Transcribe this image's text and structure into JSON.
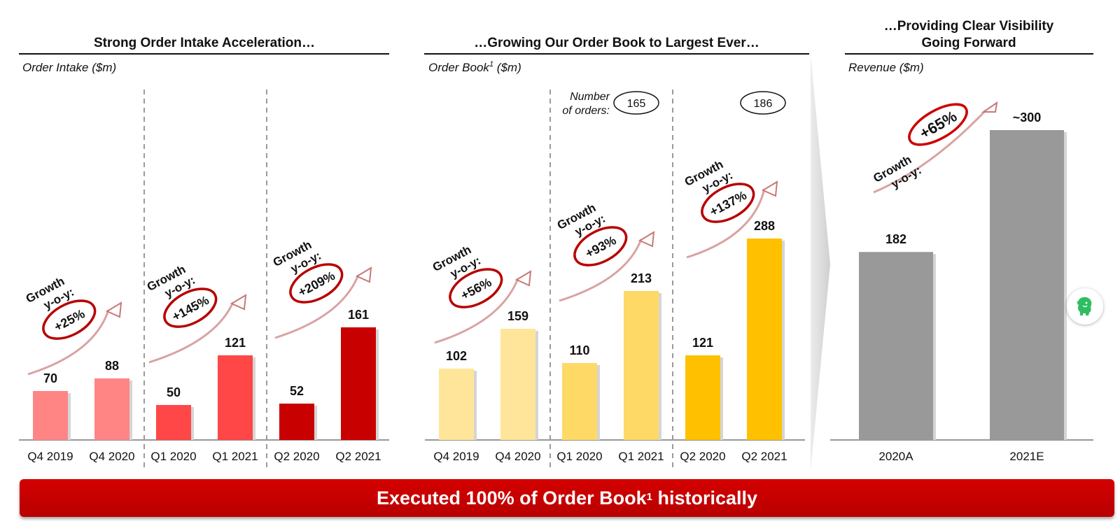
{
  "chart_data": [
    {
      "type": "bar",
      "title": "Strong Order Intake Acceleration…",
      "ylabel": "Order Intake ($m)",
      "categories": [
        "Q4 2019",
        "Q4 2020",
        "Q1 2020",
        "Q1 2021",
        "Q2 2020",
        "Q2 2021"
      ],
      "values": [
        70,
        88,
        50,
        121,
        52,
        161
      ],
      "value_labels": [
        "70",
        "88",
        "50",
        "121",
        "52",
        "161"
      ],
      "colors": [
        "#ff8585",
        "#ff8585",
        "#ff4747",
        "#ff4747",
        "#c80000",
        "#c80000"
      ],
      "growth": [
        {
          "label_1": "Growth",
          "label_2": "y-o-y:",
          "value": "+25%"
        },
        {
          "label_1": "Growth",
          "label_2": "y-o-y:",
          "value": "+145%"
        },
        {
          "label_1": "Growth",
          "label_2": "y-o-y:",
          "value": "+209%"
        }
      ]
    },
    {
      "type": "bar",
      "title": "…Growing Our Order Book to Largest Ever…",
      "ylabel": "Order Book",
      "ylabel_sup": "1",
      "ylabel_unit": "($m)",
      "categories": [
        "Q4 2019",
        "Q4 2020",
        "Q1 2020",
        "Q1 2021",
        "Q2 2020",
        "Q2 2021"
      ],
      "values": [
        102,
        159,
        110,
        213,
        121,
        288
      ],
      "value_labels": [
        "102",
        "159",
        "110",
        "213",
        "121",
        "288"
      ],
      "colors": [
        "#ffe599",
        "#ffe599",
        "#ffd966",
        "#ffd966",
        "#ffc000",
        "#ffc000"
      ],
      "growth": [
        {
          "label_1": "Growth",
          "label_2": "y-o-y:",
          "value": "+56%"
        },
        {
          "label_1": "Growth",
          "label_2": "y-o-y:",
          "value": "+93%"
        },
        {
          "label_1": "Growth",
          "label_2": "y-o-y:",
          "value": "+137%"
        }
      ],
      "orders_caption_1": "Number",
      "orders_caption_2": "of orders:",
      "orders": [
        "165",
        "186"
      ]
    },
    {
      "type": "bar",
      "title_line1": "…Providing Clear Visibility",
      "title_line2": "Going Forward",
      "ylabel": "Revenue ($m)",
      "categories": [
        "2020A",
        "2021E"
      ],
      "values": [
        182,
        300
      ],
      "value_labels": [
        "182",
        "~300"
      ],
      "colors": [
        "#999999",
        "#999999"
      ],
      "growth": {
        "label_1": "Growth",
        "label_2": "y-o-y:",
        "value": "+65%"
      }
    }
  ],
  "banner": {
    "text_main": "Executed 100% of Order Book",
    "text_sup": "1",
    "text_end": " historically"
  },
  "floating_button": {
    "icon": "evernote-elephant-icon",
    "color": "#2dbe60"
  }
}
